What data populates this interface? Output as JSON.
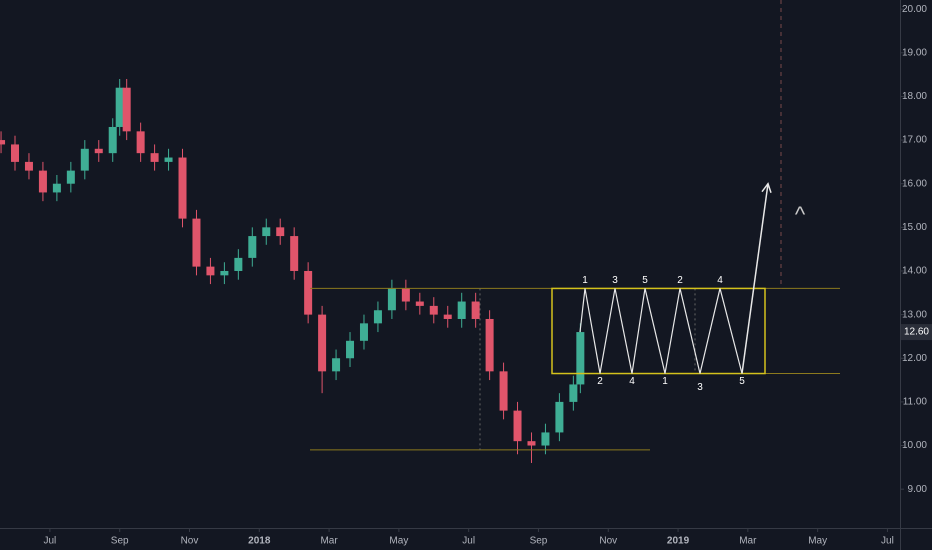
{
  "chart_data": {
    "type": "candlestick",
    "x": [
      -1.4,
      -1.0,
      -0.6,
      -0.2,
      0.2,
      0.6,
      1.0,
      1.4,
      1.8,
      2.0,
      2.2,
      2.6,
      3.0,
      3.4,
      3.8,
      4.2,
      4.6,
      5.0,
      5.4,
      5.8,
      6.2,
      6.6,
      7.0,
      7.4,
      7.8,
      8.2,
      8.6,
      9.0,
      9.4,
      9.8,
      10.2,
      10.6,
      11.0,
      11.4,
      11.8,
      12.2,
      12.6,
      13.0,
      13.4,
      13.8,
      14.2,
      14.6,
      15.0,
      15.2
    ],
    "open": [
      17.0,
      16.9,
      16.5,
      16.3,
      15.8,
      16.0,
      16.3,
      16.8,
      16.7,
      17.3,
      18.2,
      17.2,
      16.7,
      16.5,
      16.6,
      15.2,
      14.1,
      13.9,
      14.0,
      14.3,
      14.8,
      15.0,
      14.8,
      14.0,
      13.0,
      11.7,
      12.0,
      12.4,
      12.8,
      13.1,
      13.6,
      13.3,
      13.2,
      13.0,
      12.9,
      13.3,
      12.9,
      11.7,
      10.8,
      10.1,
      10.0,
      10.3,
      11.0,
      11.4
    ],
    "high": [
      17.2,
      17.1,
      16.7,
      16.5,
      16.2,
      16.5,
      17.0,
      17.0,
      17.5,
      18.4,
      18.4,
      17.4,
      16.9,
      16.8,
      16.8,
      15.4,
      14.3,
      14.2,
      14.5,
      15.0,
      15.2,
      15.2,
      15.0,
      14.2,
      13.2,
      12.2,
      12.6,
      13.0,
      13.3,
      13.8,
      13.8,
      13.5,
      13.4,
      13.2,
      13.5,
      13.5,
      13.1,
      11.9,
      11.0,
      10.3,
      10.5,
      11.2,
      11.6,
      12.8
    ],
    "low": [
      16.7,
      16.3,
      16.1,
      15.6,
      15.6,
      15.8,
      16.1,
      16.5,
      16.5,
      17.1,
      17.0,
      16.5,
      16.3,
      16.3,
      15.0,
      13.9,
      13.7,
      13.7,
      13.8,
      14.1,
      14.6,
      14.6,
      13.8,
      12.8,
      11.2,
      11.5,
      11.8,
      12.2,
      12.6,
      12.9,
      13.1,
      13.0,
      12.8,
      12.7,
      12.7,
      12.7,
      11.5,
      10.6,
      9.8,
      9.6,
      9.8,
      10.1,
      10.8,
      11.2
    ],
    "close": [
      16.9,
      16.5,
      16.3,
      15.8,
      16.0,
      16.3,
      16.8,
      16.7,
      17.3,
      18.2,
      17.2,
      16.7,
      16.5,
      16.6,
      15.2,
      14.1,
      13.9,
      14.0,
      14.3,
      14.8,
      15.0,
      14.8,
      14.0,
      13.0,
      11.7,
      12.0,
      12.4,
      12.8,
      13.1,
      13.6,
      13.3,
      13.2,
      13.0,
      12.9,
      13.3,
      12.9,
      11.7,
      10.8,
      10.1,
      10.0,
      10.3,
      11.0,
      11.4,
      12.6
    ],
    "up_color": "#3fae95",
    "down_color": "#e0556b",
    "xlim": [
      -1.43,
      24.36
    ],
    "xticks": [
      {
        "value": 0,
        "label": "Jul"
      },
      {
        "value": 2,
        "label": "Sep"
      },
      {
        "value": 4,
        "label": "Nov"
      },
      {
        "value": 6,
        "label": "2018"
      },
      {
        "value": 8,
        "label": "Mar"
      },
      {
        "value": 10,
        "label": "May"
      },
      {
        "value": 12,
        "label": "Jul"
      },
      {
        "value": 14,
        "label": "Sep"
      },
      {
        "value": 16,
        "label": "Nov"
      },
      {
        "value": 18,
        "label": "2019"
      },
      {
        "value": 20,
        "label": "Mar"
      },
      {
        "value": 22,
        "label": "May"
      },
      {
        "value": 24,
        "label": "Jul"
      }
    ],
    "ylim": [
      8.11,
      20.21
    ],
    "yticks": [
      {
        "value": 9,
        "label": "9.00"
      },
      {
        "value": 10,
        "label": "10.00"
      },
      {
        "value": 11,
        "label": "11.00"
      },
      {
        "value": 12,
        "label": "12.00"
      },
      {
        "value": 13,
        "label": "13.00"
      },
      {
        "value": 14,
        "label": "14.00"
      },
      {
        "value": 15,
        "label": "15.00"
      },
      {
        "value": 16,
        "label": "16.00"
      },
      {
        "value": 17,
        "label": "17.00"
      },
      {
        "value": 18,
        "label": "18.00"
      },
      {
        "value": 19,
        "label": "19.00"
      },
      {
        "value": 20,
        "label": "20.00"
      }
    ],
    "last_price": {
      "value": 12.6,
      "label": "12.60"
    },
    "box": {
      "top": 13.6,
      "bottom": 11.65,
      "support": 9.9,
      "target": 16.0
    },
    "labels_top": [
      "1",
      "3",
      "5",
      "2",
      "4"
    ],
    "labels_bottom": [
      "2",
      "4",
      "1",
      "3",
      "5"
    ],
    "marker": "^"
  }
}
